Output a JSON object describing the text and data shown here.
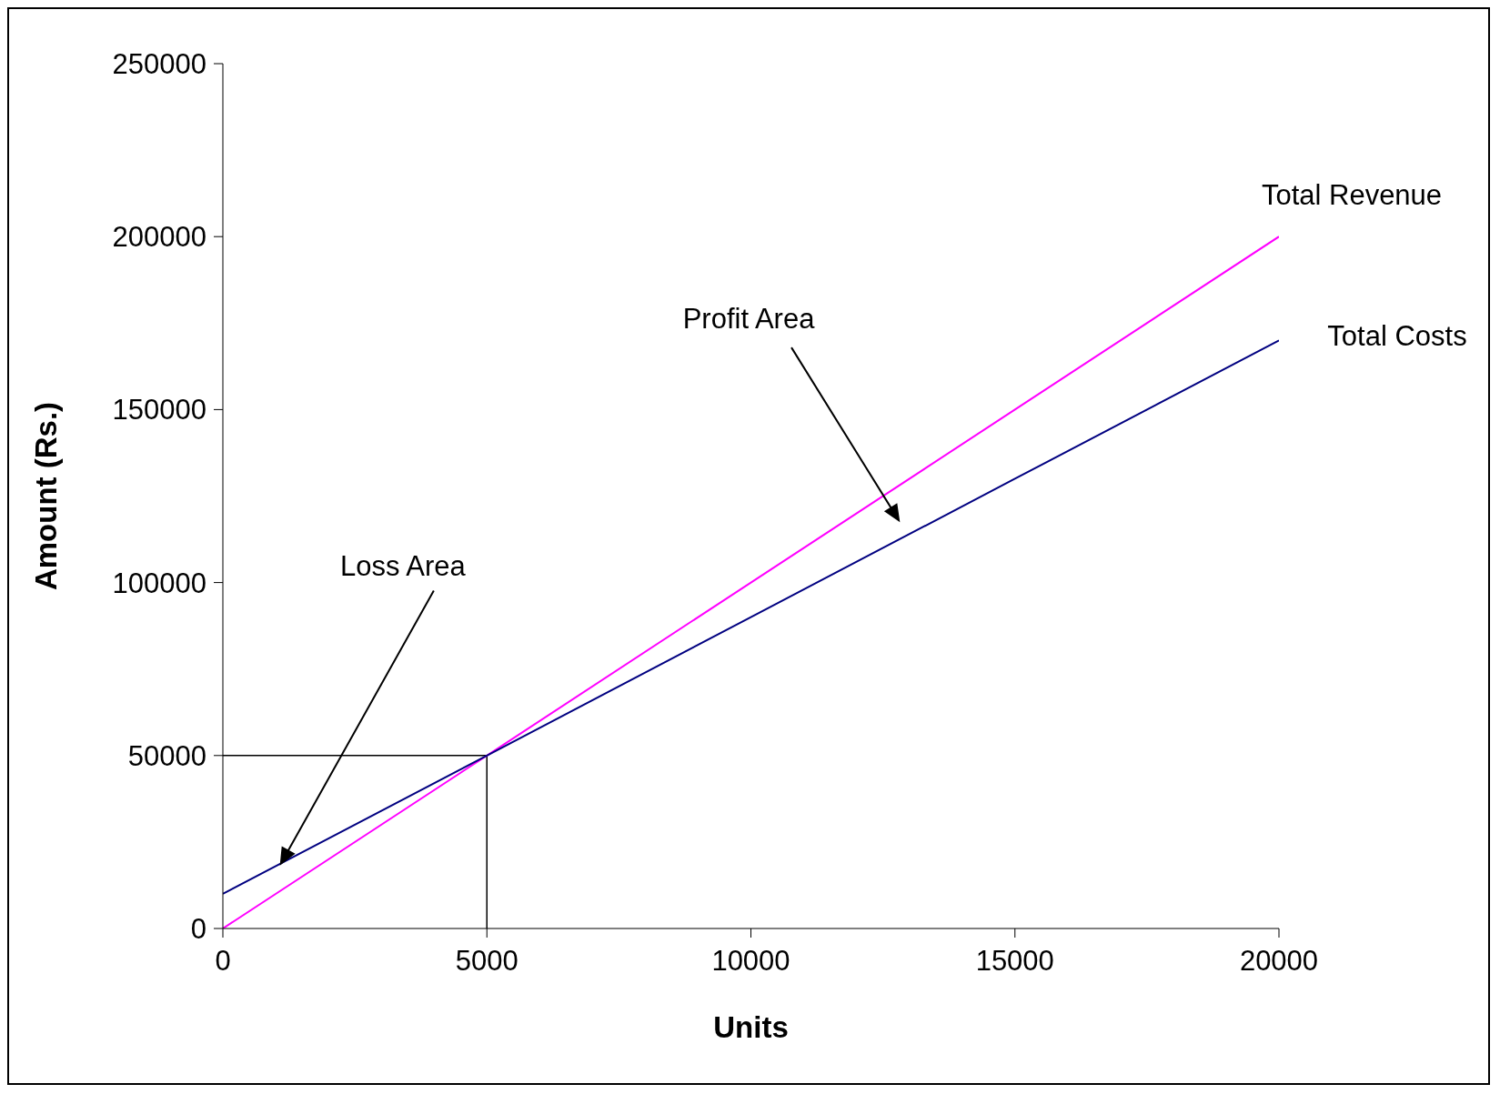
{
  "chart_data": {
    "type": "line",
    "xlabel": "Units",
    "ylabel": "Amount (Rs.)",
    "x": [
      0,
      5000,
      10000,
      15000,
      20000
    ],
    "series": [
      {
        "name": "Total Revenue",
        "color": "#ff00ff",
        "values": [
          0,
          50000,
          100000,
          150000,
          200000
        ]
      },
      {
        "name": "Total Costs",
        "color": "#000080",
        "values": [
          10000,
          50000,
          90000,
          130000,
          170000
        ]
      }
    ],
    "xlim": [
      0,
      20000
    ],
    "xticks": [
      0,
      5000,
      10000,
      15000,
      20000
    ],
    "ylim": [
      0,
      250000
    ],
    "yticks": [
      0,
      50000,
      100000,
      150000,
      200000,
      250000
    ],
    "ref_lines": [
      {
        "axis": "y",
        "value": 50000,
        "color": "#000000"
      },
      {
        "axis": "x",
        "value": 5000,
        "color": "#000000"
      }
    ],
    "annotations": [
      {
        "text": "Loss Area",
        "x": 1100,
        "y": 18800
      },
      "Profit Area"
    ],
    "grid": false,
    "legend": false,
    "marker": "none",
    "line_style": "solid"
  }
}
